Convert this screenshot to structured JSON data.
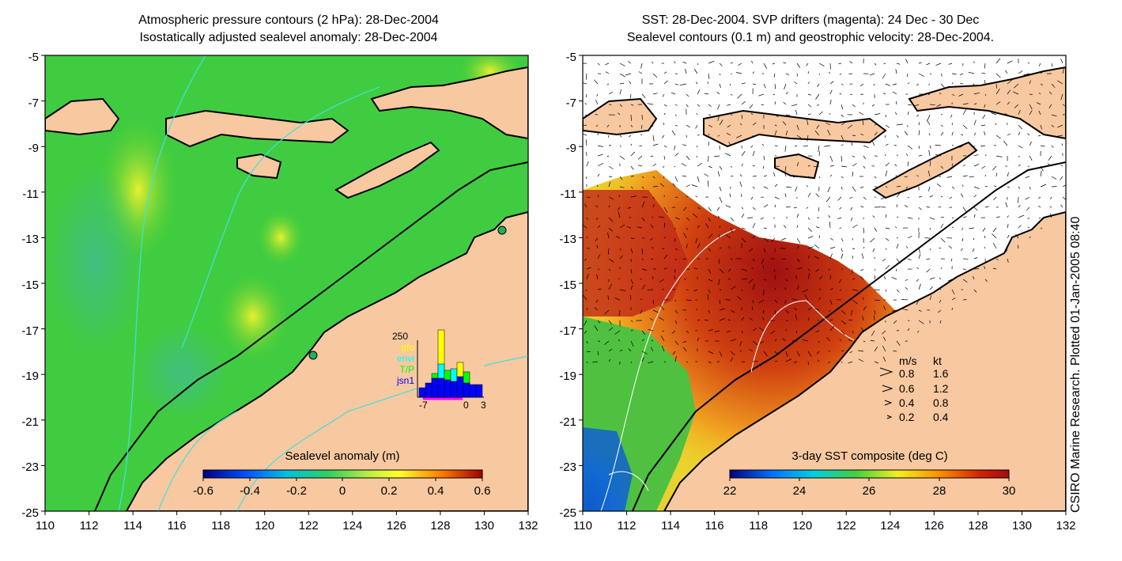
{
  "left_panel": {
    "title_line1": "Atmospheric pressure contours (2 hPa): 28-Dec-2004",
    "title_line2": "Isostatically adjusted sealevel anomaly: 28-Dec-2004",
    "colorbar_label": "Sealevel anomaly (m)",
    "colorbar_ticks": [
      "-0.6",
      "-0.4",
      "-0.2",
      "0",
      "0.2",
      "0.4",
      "0.6"
    ],
    "inset": {
      "ytick": "250",
      "legend": [
        {
          "label": "gfo",
          "color": "#ffff00"
        },
        {
          "label": "envi",
          "color": "#00ffff"
        },
        {
          "label": "T/P",
          "color": "#00ff00"
        },
        {
          "label": "jsn1",
          "color": "#0000ff"
        }
      ],
      "xticks": [
        "-7",
        "0",
        "3"
      ]
    }
  },
  "right_panel": {
    "title_line1": "SST: 28-Dec-2004. SVP drifters (magenta): 24 Dec - 30 Dec",
    "title_line2": "Sealevel contours (0.1 m) and geostrophic velocity: 28-Dec-2004.",
    "colorbar_label": "3-day SST composite (deg C)",
    "colorbar_ticks": [
      "22",
      "24",
      "26",
      "28",
      "30"
    ],
    "vector_legend": {
      "header_ms": "m/s",
      "header_kt": "kt",
      "rows": [
        {
          "ms": "0.8",
          "kt": "1.6"
        },
        {
          "ms": "0.6",
          "kt": "1.2"
        },
        {
          "ms": "0.4",
          "kt": "0.8"
        },
        {
          "ms": "0.2",
          "kt": "0.4"
        }
      ]
    }
  },
  "y_ticks": [
    "-5",
    "-7",
    "-9",
    "-11",
    "-13",
    "-15",
    "-17",
    "-19",
    "-21",
    "-23",
    "-25"
  ],
  "x_ticks": [
    "110",
    "112",
    "114",
    "116",
    "118",
    "120",
    "122",
    "124",
    "126",
    "128",
    "130",
    "132"
  ],
  "credit": "CSIRO Marine Research. Plotted 01-Jan-2005 08:40",
  "colors": {
    "land": "#f8c8a0",
    "ocean_green": "#33cc33",
    "sst_low": "#0000aa",
    "sst_high": "#a01010"
  }
}
